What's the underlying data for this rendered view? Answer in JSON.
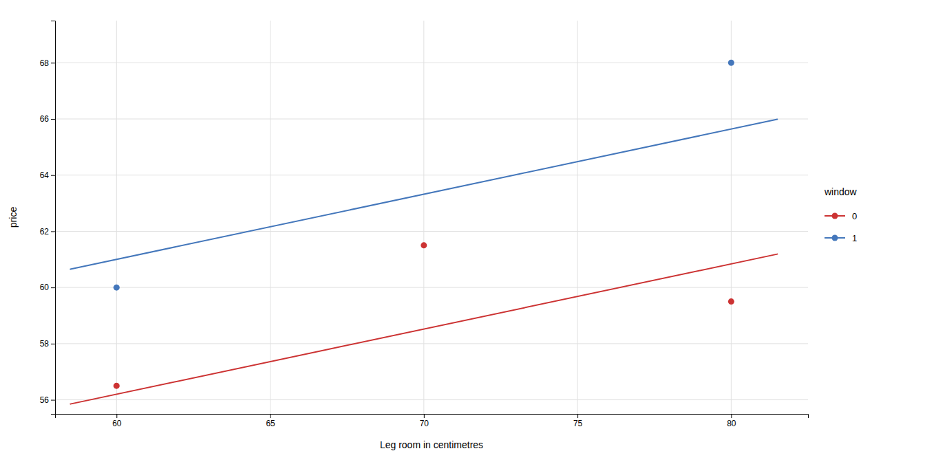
{
  "chart_data": {
    "type": "scatter",
    "xlabel": "Leg room in centimetres",
    "ylabel": "price",
    "xlim": [
      58.0,
      82.5
    ],
    "ylim": [
      55.5,
      69.5
    ],
    "xticks": [
      60,
      65,
      70,
      75,
      80
    ],
    "yticks": [
      56,
      58,
      60,
      62,
      64,
      66,
      68
    ],
    "grid": true,
    "legend": "right",
    "legend_title": "window",
    "series": [
      {
        "name": "0",
        "color": "#CC3333",
        "x": [
          60,
          70,
          80
        ],
        "values": [
          56.5,
          61.5,
          59.5
        ],
        "fit": {
          "x": [
            58.5,
            81.5
          ],
          "values": [
            55.852,
            61.188
          ]
        }
      },
      {
        "name": "1",
        "color": "#4477BB",
        "x": [
          60,
          80
        ],
        "values": [
          60.0,
          68.0
        ],
        "fit": {
          "x": [
            58.5,
            81.5
          ],
          "values": [
            60.652,
            65.988
          ]
        }
      }
    ]
  }
}
